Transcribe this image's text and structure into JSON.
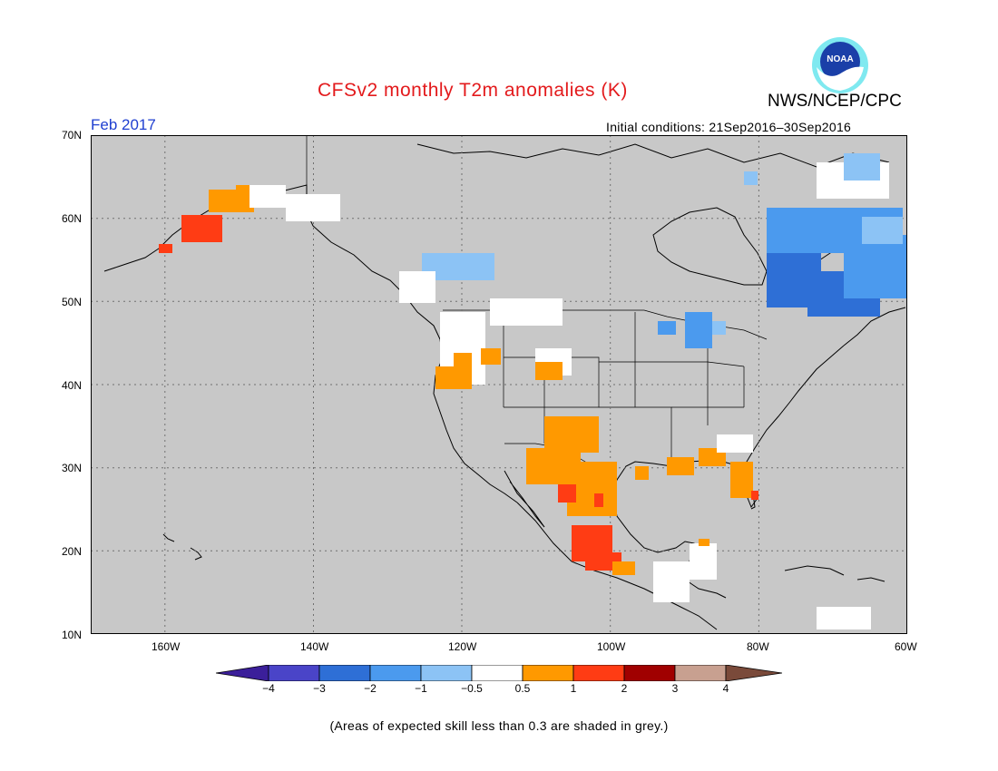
{
  "header": {
    "title": "CFSv2 monthly T2m anomalies (K)",
    "agency": "NWS/NCEP/CPC",
    "logo_text": "NOAA",
    "month": "Feb 2017",
    "initial_conditions": "Initial conditions: 21Sep2016–30Sep2016"
  },
  "map": {
    "region": "North America",
    "background_color": "#c8c8c8",
    "lat_labels": [
      "70N",
      "60N",
      "50N",
      "40N",
      "30N",
      "20N",
      "10N"
    ],
    "lon_labels": [
      "160W",
      "140W",
      "120W",
      "100W",
      "80W",
      "60W"
    ],
    "lat_range": [
      10,
      70
    ],
    "lon_range": [
      -170,
      -60
    ],
    "gridlines": "dotted"
  },
  "colorbar": {
    "labels": [
      "−4",
      "−3",
      "−2",
      "−1",
      "−0.5",
      "0.5",
      "1",
      "2",
      "3",
      "4"
    ],
    "colors": [
      "#3b1f9a",
      "#4a44c8",
      "#2e6fd6",
      "#4b9aee",
      "#8cc3f5",
      "#ffffff",
      "#ff9900",
      "#ff3c14",
      "#a00000",
      "#c8a090",
      "#7a4a3a"
    ]
  },
  "footnote": "(Areas of expected skill less than 0.3 are shaded in grey.)"
}
